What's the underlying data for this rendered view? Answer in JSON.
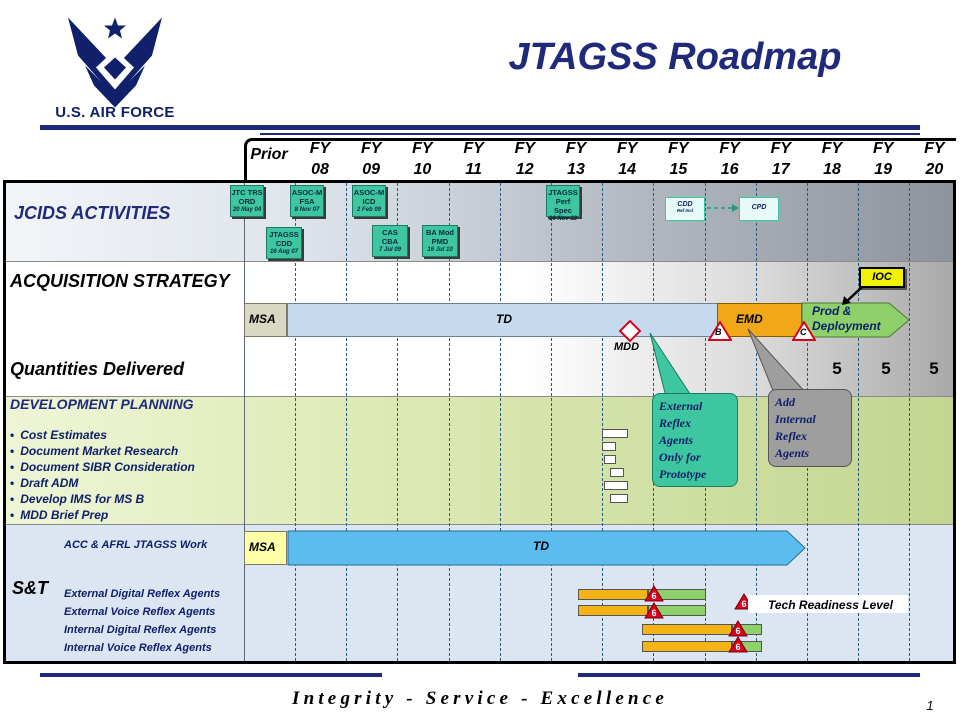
{
  "header": {
    "title": "JTAGSS Roadmap",
    "logo_text": "U.S. AIR FORCE"
  },
  "columns": {
    "prior": "Prior",
    "years": [
      {
        "fy": "FY",
        "num": "08"
      },
      {
        "fy": "FY",
        "num": "09"
      },
      {
        "fy": "FY",
        "num": "10"
      },
      {
        "fy": "FY",
        "num": "11"
      },
      {
        "fy": "FY",
        "num": "12"
      },
      {
        "fy": "FY",
        "num": "13"
      },
      {
        "fy": "FY",
        "num": "14"
      },
      {
        "fy": "FY",
        "num": "15"
      },
      {
        "fy": "FY",
        "num": "16"
      },
      {
        "fy": "FY",
        "num": "17"
      },
      {
        "fy": "FY",
        "num": "18"
      },
      {
        "fy": "FY",
        "num": "19"
      },
      {
        "fy": "FY",
        "num": "20"
      }
    ]
  },
  "sections": {
    "jcids": "JCIDS ACTIVITIES",
    "acquisition": "ACQUISITION STRATEGY",
    "quantities": "Quantities Delivered",
    "development": "DEVELOPMENT PLANNING",
    "st": "S&T"
  },
  "jcids_boxes": {
    "jtc": {
      "line1": "JTC TRS",
      "line2": "ORD",
      "date": "20 May 04"
    },
    "asoc_fsa": {
      "line1": "ASOC-M",
      "line2": "FSA",
      "date": "8 Nov 07"
    },
    "asoc_icd": {
      "line1": "ASOC-M",
      "line2": "ICD",
      "date": "2 Feb 09"
    },
    "jtagss_cdd": {
      "line1": "JTAGSS",
      "line2": "CDD",
      "date": "16 Aug 07"
    },
    "cas_cba": {
      "line1": "CAS",
      "line2": "CBA",
      "date": "7 Jul 09"
    },
    "ba_mod": {
      "line1": "BA Mod",
      "line2": "PMD",
      "date": "16 Jul 10"
    },
    "jtagss_perf": {
      "line1": "JTAGSS",
      "line2": "Perf Spec",
      "date": "16 Nov 12"
    },
    "cdd_future": {
      "line1": "CDD",
      "line2": "Ref Incl"
    },
    "cpd": {
      "line1": "CPD"
    }
  },
  "acquisition": {
    "msa": "MSA",
    "td": "TD",
    "emd": "EMD",
    "prod": "Prod &",
    "deployment": "Deployment",
    "ioc": "IOC",
    "mdd": "MDD",
    "milestone_b": "B",
    "milestone_c": "C"
  },
  "quantities": [
    "5",
    "5",
    "5"
  ],
  "development_items": [
    "Cost Estimates",
    "Document  Market Research",
    "Document  SIBR Consideration",
    "Draft  ADM",
    "Develop IMS for MS B",
    "MDD Brief Prep"
  ],
  "callouts": {
    "external": [
      "External",
      "Reflex",
      "Agents",
      "Only for",
      "Prototype"
    ],
    "internal": [
      "Add",
      "Internal",
      "Reflex",
      "Agents"
    ]
  },
  "st": {
    "work_label": "ACC & AFRL JTAGSS Work",
    "msa": "MSA",
    "td": "TD",
    "rows": [
      "External Digital Reflex Agents",
      "External Voice Reflex Agents",
      "Internal Digital Reflex Agents",
      "Internal Voice Reflex Agents"
    ],
    "trl_value": "6",
    "trl_legend": "Tech Readiness  Level"
  },
  "colors": {
    "navy": "#1f2a7a",
    "teal": "#3dc6a0",
    "emd_orange": "#f0a818",
    "prod_green": "#8ed16a",
    "td_blue": "#5bbcf0",
    "ioc_yellow": "#f2f200"
  },
  "footer": {
    "motto": "Integrity  -  Service  -  Excellence",
    "page": "1"
  }
}
